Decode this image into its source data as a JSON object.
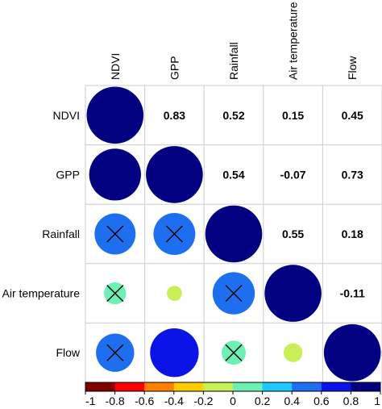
{
  "chart_data": {
    "type": "heatmap",
    "variables": [
      "NDVI",
      "GPP",
      "Rainfall",
      "Air temperature",
      "Flow"
    ],
    "matrix": [
      [
        1.0,
        0.83,
        0.52,
        0.15,
        0.45
      ],
      [
        0.83,
        1.0,
        0.54,
        -0.07,
        0.73
      ],
      [
        0.52,
        0.54,
        1.0,
        0.55,
        0.18
      ],
      [
        0.15,
        -0.07,
        0.55,
        1.0,
        -0.11
      ],
      [
        0.45,
        0.73,
        0.18,
        -0.11,
        1.0
      ]
    ],
    "upper_text": [
      {
        "row": 0,
        "col": 1,
        "text": "0.83"
      },
      {
        "row": 0,
        "col": 2,
        "text": "0.52"
      },
      {
        "row": 0,
        "col": 3,
        "text": "0.15"
      },
      {
        "row": 0,
        "col": 4,
        "text": "0.45"
      },
      {
        "row": 1,
        "col": 2,
        "text": "0.54"
      },
      {
        "row": 1,
        "col": 3,
        "text": "-0.07"
      },
      {
        "row": 1,
        "col": 4,
        "text": "0.73"
      },
      {
        "row": 2,
        "col": 3,
        "text": "0.55"
      },
      {
        "row": 2,
        "col": 4,
        "text": "0.18"
      },
      {
        "row": 3,
        "col": 4,
        "text": "-0.11"
      }
    ],
    "lower_circles": [
      {
        "row": 0,
        "col": 0,
        "value": 1.0,
        "crossed": false
      },
      {
        "row": 1,
        "col": 0,
        "value": 0.83,
        "crossed": false
      },
      {
        "row": 1,
        "col": 1,
        "value": 1.0,
        "crossed": false
      },
      {
        "row": 2,
        "col": 0,
        "value": 0.52,
        "crossed": true
      },
      {
        "row": 2,
        "col": 1,
        "value": 0.54,
        "crossed": true
      },
      {
        "row": 2,
        "col": 2,
        "value": 1.0,
        "crossed": false
      },
      {
        "row": 3,
        "col": 0,
        "value": 0.15,
        "crossed": true
      },
      {
        "row": 3,
        "col": 1,
        "value": -0.07,
        "crossed": false
      },
      {
        "row": 3,
        "col": 2,
        "value": 0.55,
        "crossed": true
      },
      {
        "row": 3,
        "col": 3,
        "value": 1.0,
        "crossed": false
      },
      {
        "row": 4,
        "col": 0,
        "value": 0.45,
        "crossed": true
      },
      {
        "row": 4,
        "col": 1,
        "value": 0.73,
        "crossed": false
      },
      {
        "row": 4,
        "col": 2,
        "value": 0.18,
        "crossed": true
      },
      {
        "row": 4,
        "col": 3,
        "value": -0.11,
        "crossed": false
      },
      {
        "row": 4,
        "col": 4,
        "value": 1.0,
        "crossed": false
      }
    ],
    "colorbar": {
      "range": [
        -1,
        1
      ],
      "ticks": [
        "-1",
        "-0.8",
        "-0.6",
        "-0.4",
        "-0.2",
        "0",
        "0.2",
        "0.4",
        "0.6",
        "0.8",
        "1"
      ],
      "colors": [
        "#800000",
        "#ff0000",
        "#ff8000",
        "#ffcc00",
        "#c8f056",
        "#6cf0b4",
        "#1ec8ff",
        "#1e6ef0",
        "#0a14e6",
        "#000080"
      ]
    },
    "grid": true,
    "legend": "bottom"
  }
}
